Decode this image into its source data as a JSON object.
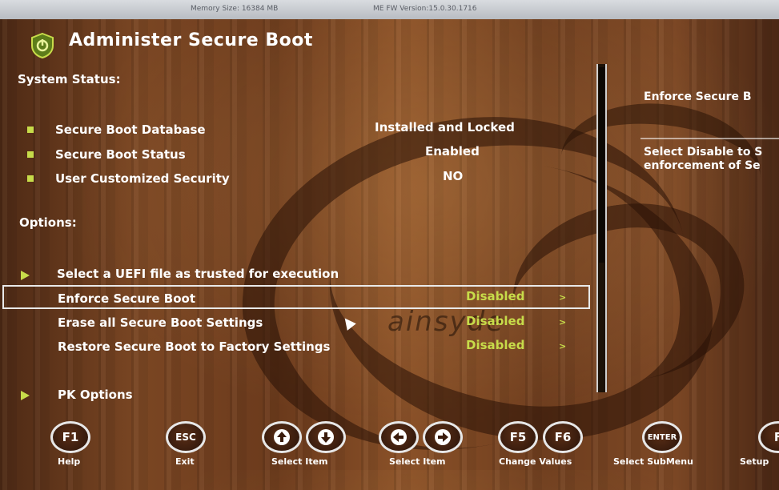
{
  "topbar": {
    "memory": "Memory Size: 16384 MB",
    "me_fw": "ME FW Version:15.0.30.1716"
  },
  "page_title": "Administer Secure Boot",
  "status": {
    "heading": "System Status:",
    "rows": [
      {
        "label": "Secure Boot Database",
        "value": "Installed and Locked"
      },
      {
        "label": "Secure Boot Status",
        "value": "Enabled"
      },
      {
        "label": "User Customized Security",
        "value": "NO"
      }
    ]
  },
  "options": {
    "heading": "Options:",
    "uefi_item": "Select a UEFI file as trusted for execution",
    "rows": [
      {
        "label": "Enforce Secure Boot",
        "value": "Disabled",
        "chevron": ">"
      },
      {
        "label": "Erase all Secure Boot Settings",
        "value": "Disabled",
        "chevron": ">"
      },
      {
        "label": "Restore Secure Boot to Factory Settings",
        "value": "Disabled",
        "chevron": ">"
      }
    ],
    "pk_item": "PK Options"
  },
  "help": {
    "title": "Enforce Secure B",
    "line1": "Select Disable to S",
    "line2": "enforcement of Se"
  },
  "watermark": "ainsyde",
  "keys": [
    {
      "key": "F1",
      "label": "Help"
    },
    {
      "key": "ESC",
      "label": "Exit"
    },
    {
      "key": "↑↓",
      "label": "Select Item"
    },
    {
      "key": "←→",
      "label": "Select Item"
    },
    {
      "key": "F5F6",
      "label": "Change Values"
    },
    {
      "key": "ENTER",
      "label": "Select  SubMenu"
    },
    {
      "key": "F",
      "label": "Setup"
    }
  ],
  "colors": {
    "accent_green": "#c7dc4a",
    "text_white": "#ffffff",
    "selection_border": "#e9e9e9"
  }
}
